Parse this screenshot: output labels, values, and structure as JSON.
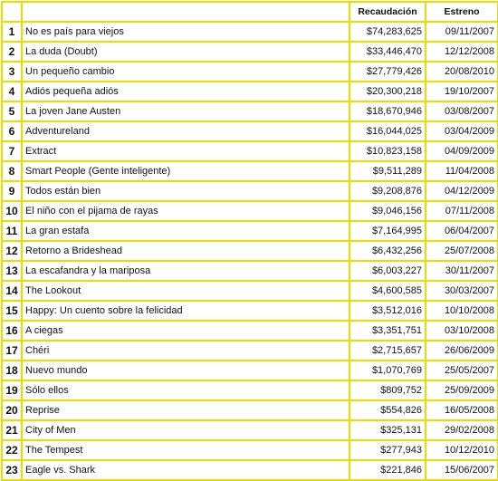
{
  "table": {
    "headers": {
      "num": "",
      "title": "",
      "gross": "Recaudación",
      "release": "Estreno"
    },
    "rows": [
      {
        "num": "1",
        "title": "No es país para viejos",
        "gross": "$74,283,625",
        "release": "09/11/2007"
      },
      {
        "num": "2",
        "title": "La duda (Doubt)",
        "gross": "$33,446,470",
        "release": "12/12/2008"
      },
      {
        "num": "3",
        "title": "Un pequeño cambio",
        "gross": "$27,779,426",
        "release": "20/08/2010"
      },
      {
        "num": "4",
        "title": "Adiós pequeña adiós",
        "gross": "$20,300,218",
        "release": "19/10/2007"
      },
      {
        "num": "5",
        "title": "La joven Jane Austen",
        "gross": "$18,670,946",
        "release": "03/08/2007"
      },
      {
        "num": "6",
        "title": "Adventureland",
        "gross": "$16,044,025",
        "release": "03/04/2009"
      },
      {
        "num": "7",
        "title": "Extract",
        "gross": "$10,823,158",
        "release": "04/09/2009"
      },
      {
        "num": "8",
        "title": "Smart People (Gente inteligente)",
        "gross": "$9,511,289",
        "release": "11/04/2008"
      },
      {
        "num": "9",
        "title": "Todos están bien",
        "gross": "$9,208,876",
        "release": "04/12/2009"
      },
      {
        "num": "10",
        "title": "El niño con el pijama de rayas",
        "gross": "$9,046,156",
        "release": "07/11/2008"
      },
      {
        "num": "11",
        "title": "La gran estafa",
        "gross": "$7,164,995",
        "release": "06/04/2007"
      },
      {
        "num": "12",
        "title": "Retorno a Brideshead",
        "gross": "$6,432,256",
        "release": "25/07/2008"
      },
      {
        "num": "13",
        "title": "La escafandra y la mariposa",
        "gross": "$6,003,227",
        "release": "30/11/2007"
      },
      {
        "num": "14",
        "title": "The Lookout",
        "gross": "$4,600,585",
        "release": "30/03/2007"
      },
      {
        "num": "15",
        "title": "Happy: Un cuento sobre la felicidad",
        "gross": "$3,512,016",
        "release": "10/10/2008"
      },
      {
        "num": "16",
        "title": "A ciegas",
        "gross": "$3,351,751",
        "release": "03/10/2008"
      },
      {
        "num": "17",
        "title": "Chéri",
        "gross": "$2,715,657",
        "release": "26/06/2009"
      },
      {
        "num": "18",
        "title": "Nuevo mundo",
        "gross": "$1,070,769",
        "release": "25/05/2007"
      },
      {
        "num": "19",
        "title": "Sólo ellos",
        "gross": "$809,752",
        "release": "25/09/2009"
      },
      {
        "num": "20",
        "title": "Reprise",
        "gross": "$554,826",
        "release": "16/05/2008"
      },
      {
        "num": "21",
        "title": "City of Men",
        "gross": "$325,131",
        "release": "29/02/2008"
      },
      {
        "num": "22",
        "title": "The Tempest",
        "gross": "$277,943",
        "release": "10/12/2010"
      },
      {
        "num": "23",
        "title": "Eagle vs. Shark",
        "gross": "$221,846",
        "release": "15/06/2007"
      }
    ]
  },
  "colors": {
    "grid": "#e6de00",
    "text": "#111111",
    "background": "#ffffff"
  }
}
